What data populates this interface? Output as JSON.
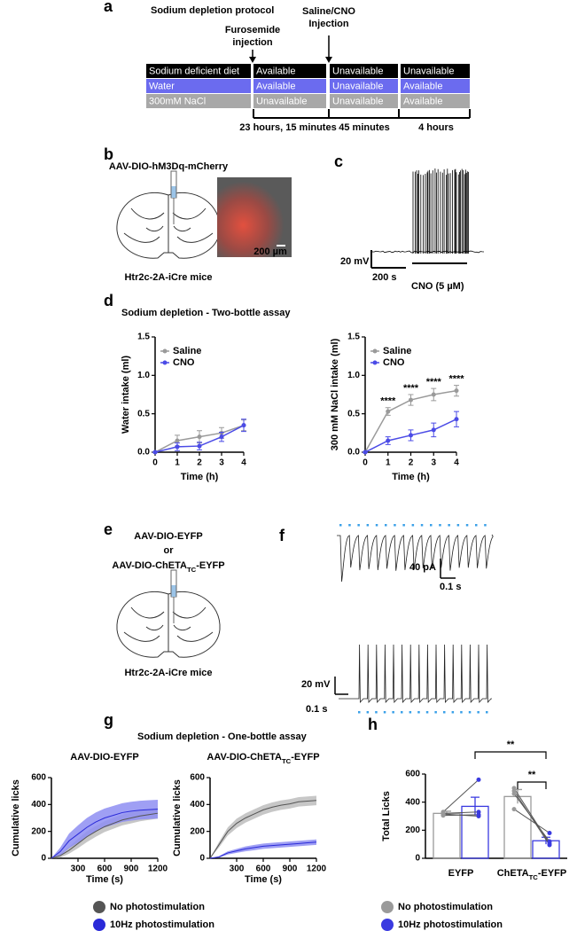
{
  "panel_a": {
    "label": "a",
    "title": "Sodium depletion protocol",
    "events": [
      [
        "Furosemide",
        "injection"
      ],
      [
        "Saline/CNO",
        "Injection"
      ]
    ],
    "rows": [
      {
        "name": "Sodium deficient diet",
        "color": "#000000",
        "cells": [
          "Available",
          "Unavailable",
          "Unavailable"
        ]
      },
      {
        "name": "Water",
        "color": "#6b6bef",
        "cells": [
          "Available",
          "Unavailable",
          "Available"
        ]
      },
      {
        "name": "300mM NaCl",
        "color": "#a8a8a8",
        "cells": [
          "Unavailable",
          "Unavailable",
          "Available"
        ]
      }
    ],
    "durations": [
      "23 hours, 15 minutes",
      "45 minutes",
      "4 hours"
    ]
  },
  "panel_b": {
    "label": "b",
    "virus": "AAV-DIO-hM3Dq-mCherry",
    "mouse": "Htr2c-2A-iCre mice",
    "scale_bar": "200 µm"
  },
  "panel_c": {
    "label": "c",
    "voltage_scale": "20 mV",
    "time_scale": "200 s",
    "drug": "CNO (5 µM)"
  },
  "panel_d": {
    "label": "d",
    "title": "Sodium depletion - Two-bottle assay"
  },
  "panel_e": {
    "label": "e",
    "virus_1": "AAV-DIO-EYFP",
    "or": "or",
    "virus_2": {
      "main": "AAV-DIO-ChETA",
      "sub": "TC",
      "suffix": "-EYFP"
    },
    "mouse": "Htr2c-2A-iCre mice"
  },
  "panel_f": {
    "label": "f",
    "current_scale": "40 pA",
    "time_scale_top": "0.1 s",
    "voltage_scale": "20 mV",
    "time_scale_bottom": "0.1 s"
  },
  "panel_g": {
    "label": "g",
    "title": "Sodium depletion - One-bottle assay"
  },
  "panel_h": {
    "label": "h"
  },
  "chart_data": [
    {
      "type": "line",
      "ylabel": "Water intake (ml)",
      "xlabel": "Time (h)",
      "x": [
        0,
        1,
        2,
        3,
        4
      ],
      "xlim": [
        0,
        4
      ],
      "xticks": [
        0,
        1,
        2,
        3,
        4
      ],
      "ylim": [
        0,
        1.5
      ],
      "yticks": [
        {
          "value": 0,
          "label": "0.0"
        },
        {
          "value": 0.5,
          "label": "0.5"
        },
        {
          "value": 1,
          "label": "1.0"
        },
        {
          "value": 1.5,
          "label": "1.5"
        }
      ],
      "legend": "upper left",
      "series": [
        {
          "name": "Saline",
          "color": "#9a9a9a",
          "values": [
            0,
            0.15,
            0.2,
            0.25,
            0.35
          ],
          "errors": [
            0,
            0.07,
            0.08,
            0.07,
            0.07
          ]
        },
        {
          "name": "CNO",
          "color": "#4b4be6",
          "values": [
            0,
            0.07,
            0.08,
            0.2,
            0.35
          ],
          "errors": [
            0,
            0.05,
            0.05,
            0.06,
            0.08
          ]
        }
      ]
    },
    {
      "type": "line",
      "ylabel": "300 mM NaCl intake (ml)",
      "xlabel": "Time (h)",
      "x": [
        0,
        1,
        2,
        3,
        4
      ],
      "xlim": [
        0,
        4
      ],
      "xticks": [
        0,
        1,
        2,
        3,
        4
      ],
      "ylim": [
        0,
        1.5
      ],
      "yticks": [
        {
          "value": 0,
          "label": "0.0"
        },
        {
          "value": 0.5,
          "label": "0.5"
        },
        {
          "value": 1,
          "label": "1.0"
        },
        {
          "value": 1.5,
          "label": "1.5"
        }
      ],
      "legend": "upper left",
      "annotations": [
        null,
        "****",
        "****",
        "****",
        "****"
      ],
      "series": [
        {
          "name": "Saline",
          "color": "#9a9a9a",
          "values": [
            0,
            0.53,
            0.68,
            0.75,
            0.8
          ],
          "errors": [
            0,
            0.05,
            0.07,
            0.08,
            0.07
          ]
        },
        {
          "name": "CNO",
          "color": "#4b4be6",
          "values": [
            0,
            0.15,
            0.22,
            0.29,
            0.43
          ],
          "errors": [
            0,
            0.05,
            0.07,
            0.09,
            0.1
          ]
        }
      ]
    },
    {
      "type": "area",
      "title": "AAV-DIO-EYFP",
      "ylabel": "Cumulative licks",
      "xlabel": "Time (s)",
      "x": [
        0,
        100,
        200,
        300,
        400,
        500,
        600,
        700,
        800,
        900,
        1000,
        1100,
        1200
      ],
      "xlim": [
        0,
        1200
      ],
      "xticks": [
        300,
        600,
        900,
        1200
      ],
      "ylim": [
        0,
        600
      ],
      "yticks": [
        0,
        200,
        400,
        600
      ],
      "legend": "bottom",
      "series": [
        {
          "name": "No photostimulation",
          "color": "#555555",
          "band_color": "#bdbdbd",
          "values": [
            0,
            20,
            60,
            110,
            160,
            200,
            235,
            260,
            285,
            300,
            315,
            325,
            335
          ],
          "errors": [
            0,
            15,
            25,
            35,
            40,
            40,
            40,
            40,
            40,
            40,
            40,
            40,
            40
          ]
        },
        {
          "name": "10Hz photostimulation",
          "color": "#2a2ad8",
          "band_color": "#8e8ef2",
          "values": [
            0,
            50,
            130,
            180,
            230,
            270,
            300,
            320,
            340,
            350,
            358,
            362,
            365
          ],
          "errors": [
            0,
            30,
            55,
            65,
            70,
            70,
            70,
            70,
            70,
            70,
            70,
            70,
            70
          ]
        }
      ]
    },
    {
      "type": "area",
      "title": {
        "main": "AAV-DIO-ChETA",
        "sub": "TC",
        "suffix": "-EYFP"
      },
      "ylabel": "Cumulative licks",
      "xlabel": "Time (s)",
      "x": [
        0,
        100,
        200,
        300,
        400,
        500,
        600,
        700,
        800,
        900,
        1000,
        1100,
        1200
      ],
      "xlim": [
        0,
        1200
      ],
      "xticks": [
        300,
        600,
        900,
        1200
      ],
      "ylim": [
        0,
        600
      ],
      "yticks": [
        0,
        200,
        400,
        600
      ],
      "series": [
        {
          "color": "#555555",
          "band_color": "#bdbdbd",
          "values": [
            0,
            100,
            200,
            260,
            300,
            330,
            360,
            380,
            395,
            405,
            420,
            425,
            430
          ],
          "errors": [
            0,
            20,
            30,
            35,
            35,
            35,
            35,
            35,
            35,
            35,
            35,
            35,
            35
          ]
        },
        {
          "color": "#2a2ad8",
          "band_color": "#8e8ef2",
          "values": [
            0,
            10,
            40,
            55,
            70,
            80,
            90,
            95,
            100,
            105,
            110,
            115,
            120
          ],
          "errors": [
            0,
            5,
            12,
            15,
            18,
            20,
            20,
            20,
            20,
            20,
            20,
            20,
            20
          ]
        }
      ]
    },
    {
      "type": "bar",
      "ylabel": "Total Licks",
      "categories": [
        "EYFP",
        {
          "main": "ChETA",
          "sub": "TC",
          "suffix": "-EYFP"
        }
      ],
      "ylim": [
        0,
        600
      ],
      "yticks": [
        0,
        200,
        400,
        600
      ],
      "legend": "bottom",
      "annotations": [
        "**",
        "**"
      ],
      "series": [
        {
          "name": "No photostimulation",
          "color": "#9a9a9a",
          "values": [
            320,
            440
          ],
          "errors": [
            15,
            50
          ],
          "points": [
            [
              305,
              315,
              320,
              330
            ],
            [
              480,
              500,
              460,
              350
            ]
          ]
        },
        {
          "name": "10Hz photostimulation",
          "color": "#3a3ae0",
          "values": [
            370,
            125
          ],
          "errors": [
            65,
            25
          ],
          "points": [
            [
              310,
              300,
              330,
              560
            ],
            [
              95,
              105,
              120,
              180
            ]
          ]
        }
      ]
    }
  ]
}
